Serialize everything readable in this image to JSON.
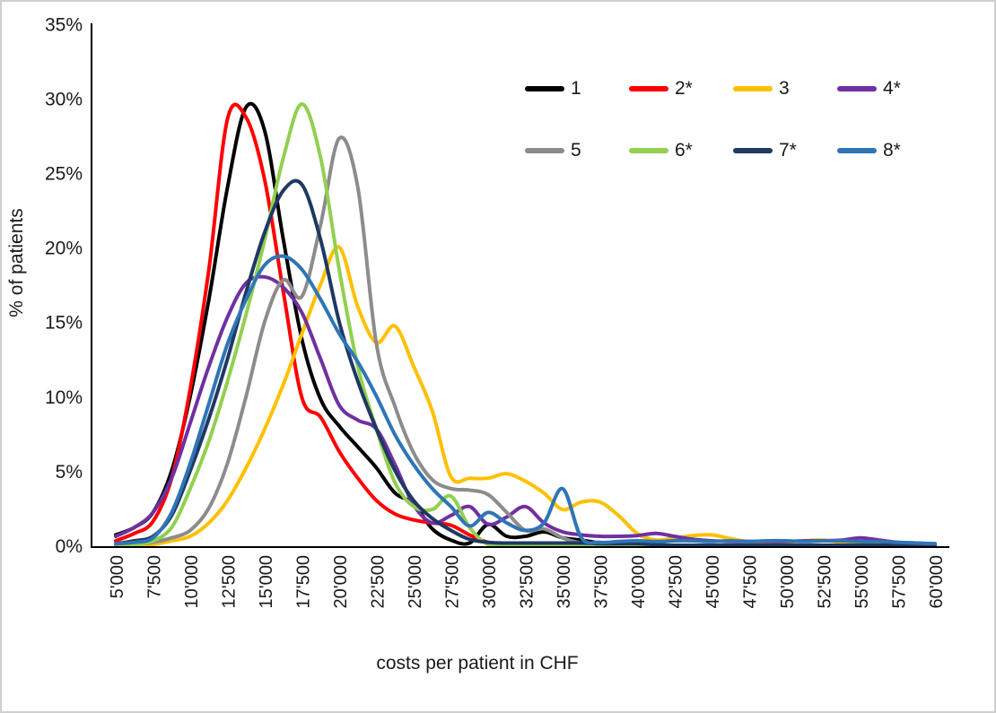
{
  "page": {
    "background": "#ffffff",
    "border_color": "#cfcfcf",
    "axis_color": "#000000",
    "tick_label_color": "#1a1a1a"
  },
  "chart_data": {
    "type": "line",
    "title": "",
    "xlabel": "costs per patient in CHF",
    "ylabel": "% of patients",
    "ylim": [
      0,
      35
    ],
    "grid": false,
    "legend_position": "top-right-inside",
    "y_ticks": [
      {
        "value": 0,
        "label": "0%"
      },
      {
        "value": 5,
        "label": "5%"
      },
      {
        "value": 10,
        "label": "10%"
      },
      {
        "value": 15,
        "label": "15%"
      },
      {
        "value": 20,
        "label": "20%"
      },
      {
        "value": 25,
        "label": "25%"
      },
      {
        "value": 30,
        "label": "30%"
      },
      {
        "value": 35,
        "label": "35%"
      }
    ],
    "x_ticks": [
      {
        "value": 5000,
        "label": "5'000"
      },
      {
        "value": 7500,
        "label": "7'500"
      },
      {
        "value": 10000,
        "label": "10'000"
      },
      {
        "value": 12500,
        "label": "12'500"
      },
      {
        "value": 15000,
        "label": "15'000"
      },
      {
        "value": 17500,
        "label": "17'500"
      },
      {
        "value": 20000,
        "label": "20'000"
      },
      {
        "value": 22500,
        "label": "22'500"
      },
      {
        "value": 25000,
        "label": "25'000"
      },
      {
        "value": 27500,
        "label": "27'500"
      },
      {
        "value": 30000,
        "label": "30'000"
      },
      {
        "value": 32500,
        "label": "32'500"
      },
      {
        "value": 35000,
        "label": "35'000"
      },
      {
        "value": 37500,
        "label": "37'500"
      },
      {
        "value": 40000,
        "label": "40'000"
      },
      {
        "value": 42500,
        "label": "42'500"
      },
      {
        "value": 45000,
        "label": "45'000"
      },
      {
        "value": 47500,
        "label": "47'500"
      },
      {
        "value": 50000,
        "label": "50'000"
      },
      {
        "value": 52500,
        "label": "52'500"
      },
      {
        "value": 55000,
        "label": "55'000"
      },
      {
        "value": 57500,
        "label": "57'500"
      },
      {
        "value": 60000,
        "label": "60'000"
      }
    ],
    "x_values": [
      5000,
      6250,
      7500,
      8750,
      10000,
      11250,
      12500,
      13750,
      15000,
      16250,
      17500,
      18750,
      20000,
      21250,
      22500,
      23750,
      25000,
      26250,
      27500,
      28750,
      30000,
      31250,
      32500,
      33750,
      35000,
      36250,
      37500,
      38750,
      40000,
      41250,
      42500,
      43750,
      45000,
      46250,
      47500,
      48750,
      50000,
      51250,
      52500,
      53750,
      55000,
      56250,
      57500,
      58750,
      60000
    ],
    "series": [
      {
        "label": "1",
        "color": "#000000",
        "values": [
          0.7,
          1.2,
          2.2,
          5,
          10,
          16.5,
          24,
          29.4,
          27.8,
          20.5,
          13.8,
          9.8,
          8,
          6.6,
          5.2,
          3.5,
          2.8,
          1.1,
          0.35,
          0.15,
          1.4,
          0.6,
          0.6,
          0.9,
          0.5,
          0.35,
          0.15,
          0.05,
          0,
          0,
          0,
          0,
          0,
          0,
          0,
          0,
          0,
          0,
          0,
          0,
          0,
          0,
          0,
          0,
          0
        ]
      },
      {
        "label": "2*",
        "color": "#ff0000",
        "values": [
          0.3,
          0.8,
          1.6,
          4.5,
          10.5,
          18.5,
          28.6,
          28.7,
          24.5,
          17,
          9.9,
          8.6,
          6.3,
          4.5,
          3,
          2.1,
          1.7,
          1.5,
          1.35,
          0.7,
          0.2,
          0.05,
          0,
          0,
          0,
          0,
          0,
          0,
          0,
          0,
          0,
          0,
          0,
          0,
          0,
          0,
          0,
          0,
          0,
          0,
          0,
          0,
          0,
          0,
          0
        ]
      },
      {
        "label": "3",
        "color": "#ffc000",
        "values": [
          0,
          0,
          0.05,
          0.3,
          0.6,
          1.5,
          3,
          5.2,
          7.8,
          10.8,
          14.2,
          17.5,
          20,
          16,
          13.6,
          14.7,
          12,
          9,
          4.6,
          4.5,
          4.5,
          4.8,
          4.3,
          3.5,
          2.4,
          2.9,
          2.9,
          2,
          0.8,
          0.35,
          0.5,
          0.65,
          0.7,
          0.45,
          0.25,
          0.2,
          0.2,
          0.3,
          0.35,
          0.2,
          0.1,
          0.05,
          0,
          0,
          0
        ]
      },
      {
        "label": "4*",
        "color": "#7030a0",
        "values": [
          0.6,
          1.2,
          2.2,
          4.5,
          8.2,
          12,
          15.3,
          17.6,
          18,
          17.3,
          15.6,
          12.5,
          9.4,
          8.4,
          7.8,
          5.4,
          2.7,
          1.5,
          2,
          2.6,
          1.4,
          1.9,
          2.6,
          1.5,
          0.9,
          0.7,
          0.6,
          0.6,
          0.65,
          0.8,
          0.6,
          0.4,
          0.3,
          0.25,
          0.25,
          0.25,
          0.25,
          0.3,
          0.3,
          0.35,
          0.5,
          0.35,
          0.2,
          0.15,
          0.1
        ]
      },
      {
        "label": "5",
        "color": "#8c8c8c",
        "values": [
          0,
          0.05,
          0.2,
          0.5,
          1,
          2.5,
          5.5,
          10,
          15,
          17.8,
          16.7,
          21.5,
          27.3,
          24,
          13.5,
          9.3,
          6.2,
          4.4,
          3.8,
          3.7,
          3.4,
          2.2,
          1,
          1.1,
          0.5,
          0.15,
          0.05,
          0,
          0,
          0,
          0,
          0,
          0,
          0,
          0,
          0,
          0,
          0,
          0,
          0,
          0,
          0,
          0,
          0,
          0
        ]
      },
      {
        "label": "6*",
        "color": "#92d050",
        "values": [
          0,
          0.05,
          0.3,
          1.2,
          3.8,
          7,
          11,
          15.5,
          20.5,
          26,
          29.6,
          26,
          18.5,
          12,
          7.8,
          4.2,
          2.6,
          2.4,
          3.3,
          1.2,
          0.05,
          0,
          0,
          0,
          0,
          0,
          0,
          0,
          0,
          0,
          0,
          0,
          0,
          0,
          0,
          0,
          0,
          0,
          0,
          0,
          0,
          0,
          0,
          0,
          0
        ]
      },
      {
        "label": "7*",
        "color": "#1f3864",
        "values": [
          0.1,
          0.3,
          0.6,
          2,
          5,
          8.5,
          12.5,
          17,
          21,
          23.8,
          24.2,
          20.5,
          15,
          11,
          7.8,
          5,
          3,
          1.8,
          1,
          0.4,
          0.2,
          0.15,
          0.15,
          0.15,
          0.15,
          0.15,
          0.1,
          0.1,
          0.1,
          0.05,
          0,
          0,
          0,
          0,
          0,
          0,
          0,
          0,
          0,
          0,
          0,
          0,
          0,
          0,
          0
        ]
      },
      {
        "label": "8*",
        "color": "#2e75b6",
        "values": [
          0.1,
          0.2,
          0.5,
          2.2,
          5.5,
          9.5,
          13.5,
          16.5,
          18.8,
          19.4,
          18.5,
          16.5,
          14.2,
          12.3,
          10,
          7.4,
          5.4,
          3.8,
          2.6,
          1.3,
          2.2,
          1.5,
          1,
          1.5,
          3.8,
          0.5,
          0.2,
          0.25,
          0.3,
          0.25,
          0.3,
          0.3,
          0.25,
          0.3,
          0.25,
          0.3,
          0.3,
          0.25,
          0.3,
          0.3,
          0.25,
          0.25,
          0.2,
          0.15,
          0.1
        ]
      }
    ]
  }
}
